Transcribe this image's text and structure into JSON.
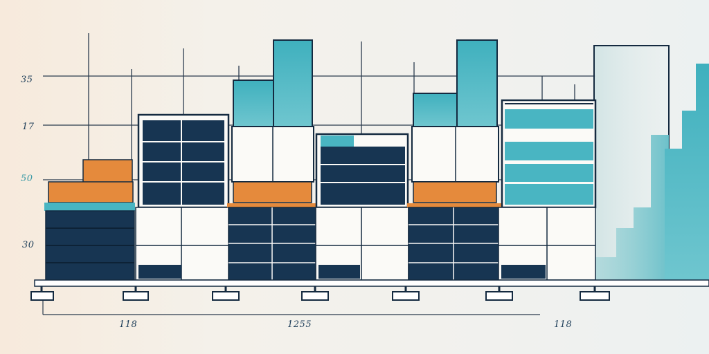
{
  "scene": {
    "colors": {
      "navy": "#173552",
      "teal": "#49b5c2",
      "orange": "#e58a3c",
      "white": "#fbfaf7",
      "outline": "#142a40",
      "grid": "#2a3b4d"
    },
    "y_labels": [
      "35",
      "17",
      "50",
      "30"
    ],
    "x_labels": [
      "118",
      "1255",
      "118"
    ]
  }
}
